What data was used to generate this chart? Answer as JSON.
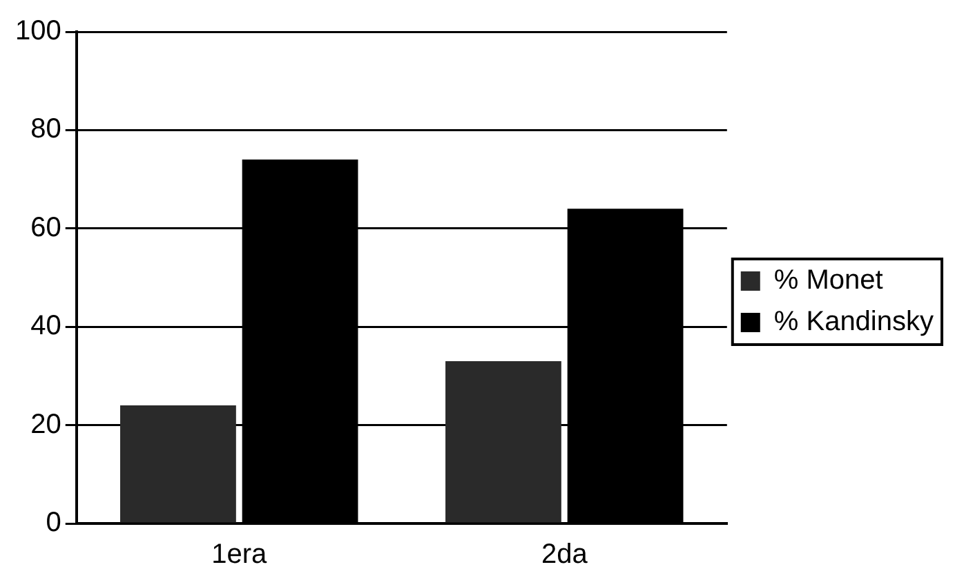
{
  "chart_data": {
    "type": "bar",
    "categories": [
      "1era",
      "2da"
    ],
    "series": [
      {
        "name": "% Monet",
        "color": "#2a2a2a",
        "values": [
          24,
          33
        ]
      },
      {
        "name": "% Kandinsky",
        "color": "#000000",
        "values": [
          74,
          64
        ]
      }
    ],
    "ylim": [
      0,
      100
    ],
    "yticks": [
      0,
      20,
      40,
      60,
      80,
      100
    ],
    "grid": "y",
    "legend": "right"
  }
}
